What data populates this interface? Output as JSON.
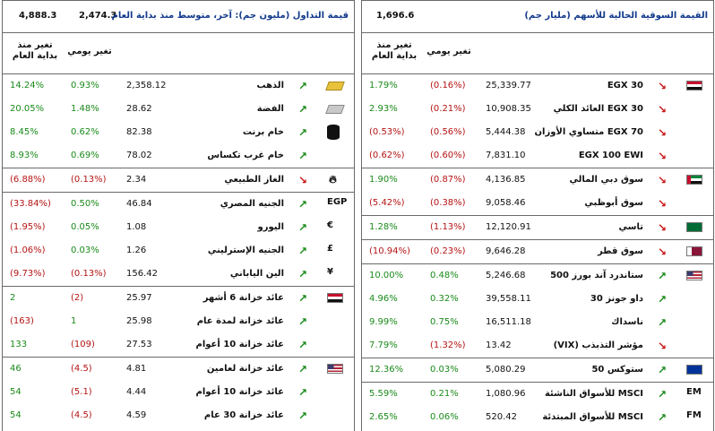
{
  "left": {
    "header": {
      "title": "قيمة التداول (مليون جم): آخر، متوسط منذ بداية العام",
      "last": "2,474.3",
      "avg": "4,888.3"
    },
    "col_headers": {
      "ytd": "تغير منذ بداية العام",
      "daily": "تغير يومي"
    },
    "rows": [
      {
        "ytd": "14.24%",
        "ytd_c": "pos",
        "d": "0.93%",
        "d_c": "pos",
        "price": "2,358.12",
        "name": "الذهب",
        "arrow": "up",
        "icon": "gold-bar",
        "sep": false
      },
      {
        "ytd": "20.05%",
        "ytd_c": "pos",
        "d": "1.48%",
        "d_c": "pos",
        "price": "28.62",
        "name": "الفضة",
        "arrow": "up",
        "icon": "silver-bar",
        "sep": false
      },
      {
        "ytd": "8.45%",
        "ytd_c": "pos",
        "d": "0.62%",
        "d_c": "pos",
        "price": "82.38",
        "name": "خام برنت",
        "arrow": "up",
        "icon": "oil-barrel",
        "sep": false
      },
      {
        "ytd": "8.93%",
        "ytd_c": "pos",
        "d": "0.69%",
        "d_c": "pos",
        "price": "78.02",
        "name": "خام غرب تكساس",
        "arrow": "up",
        "icon": "",
        "sep": false
      },
      {
        "ytd": "(6.88%)",
        "ytd_c": "neg",
        "d": "(0.13%)",
        "d_c": "neg",
        "price": "2.34",
        "name": "الغاز الطبيعي",
        "arrow": "down",
        "icon": "flame",
        "sep": true
      },
      {
        "ytd": "(33.84%)",
        "ytd_c": "neg",
        "d": "0.50%",
        "d_c": "pos",
        "price": "46.84",
        "name": "الجنيه المصري",
        "arrow": "up",
        "icon": "EGP",
        "sep": true
      },
      {
        "ytd": "(1.95%)",
        "ytd_c": "neg",
        "d": "0.05%",
        "d_c": "pos",
        "price": "1.08",
        "name": "اليورو",
        "arrow": "up",
        "icon": "€",
        "sep": false
      },
      {
        "ytd": "(1.06%)",
        "ytd_c": "neg",
        "d": "0.03%",
        "d_c": "pos",
        "price": "1.26",
        "name": "الجنيه الإسترليني",
        "arrow": "up",
        "icon": "£",
        "sep": false
      },
      {
        "ytd": "(9.73%)",
        "ytd_c": "neg",
        "d": "(0.13%)",
        "d_c": "neg",
        "price": "156.42",
        "name": "الين الياباني",
        "arrow": "up",
        "icon": "¥",
        "sep": false
      },
      {
        "ytd": "2",
        "ytd_c": "pos",
        "d": "(2)",
        "d_c": "neg",
        "price": "25.97",
        "name": "عائد خزانة 6 أشهر",
        "arrow": "up",
        "icon": "flag-egypt",
        "sep": true
      },
      {
        "ytd": "(163)",
        "ytd_c": "neg",
        "d": "1",
        "d_c": "pos",
        "price": "25.98",
        "name": "عائد خزانة لمدة عام",
        "arrow": "up",
        "icon": "",
        "sep": false
      },
      {
        "ytd": "133",
        "ytd_c": "pos",
        "d": "(109)",
        "d_c": "neg",
        "price": "27.53",
        "name": "عائد خزانة 10 أعوام",
        "arrow": "up",
        "icon": "",
        "sep": false
      },
      {
        "ytd": "46",
        "ytd_c": "pos",
        "d": "(4.5)",
        "d_c": "neg",
        "price": "4.81",
        "name": "عائد خزانة لعامين",
        "arrow": "up",
        "icon": "flag-usa",
        "sep": true
      },
      {
        "ytd": "54",
        "ytd_c": "pos",
        "d": "(5.1)",
        "d_c": "neg",
        "price": "4.44",
        "name": "عائد خزانة 10 أعوام",
        "arrow": "up",
        "icon": "",
        "sep": false
      },
      {
        "ytd": "54",
        "ytd_c": "pos",
        "d": "(4.5)",
        "d_c": "neg",
        "price": "4.59",
        "name": "عائد خزانة 30 عام",
        "arrow": "up",
        "icon": "",
        "sep": false
      }
    ]
  },
  "right": {
    "header": {
      "title": "القيمة السوقية الحالية للأسهم (مليار جم)",
      "value": "1,696.6"
    },
    "col_headers": {
      "ytd": "تغير منذ بداية العام",
      "daily": "تغير يومي"
    },
    "rows": [
      {
        "ytd": "1.79%",
        "ytd_c": "pos",
        "d": "(0.16%)",
        "d_c": "neg",
        "price": "25,339.77",
        "name": "EGX 30",
        "arrow": "down",
        "icon": "flag-egypt",
        "sep": false
      },
      {
        "ytd": "2.93%",
        "ytd_c": "pos",
        "d": "(0.21%)",
        "d_c": "neg",
        "price": "10,908.35",
        "name": "EGX 30 العائد الكلي",
        "arrow": "down",
        "icon": "",
        "sep": false
      },
      {
        "ytd": "(0.53%)",
        "ytd_c": "neg",
        "d": "(0.56%)",
        "d_c": "neg",
        "price": "5,444.38",
        "name": "EGX 70 متساوي الأوزان",
        "arrow": "down",
        "icon": "",
        "sep": false
      },
      {
        "ytd": "(0.62%)",
        "ytd_c": "neg",
        "d": "(0.60%)",
        "d_c": "neg",
        "price": "7,831.10",
        "name": "EGX 100 EWI",
        "arrow": "down",
        "icon": "",
        "sep": false
      },
      {
        "ytd": "1.90%",
        "ytd_c": "pos",
        "d": "(0.87%)",
        "d_c": "neg",
        "price": "4,136.85",
        "name": "سوق دبي المالي",
        "arrow": "down",
        "icon": "flag-uae",
        "sep": true
      },
      {
        "ytd": "(5.42%)",
        "ytd_c": "neg",
        "d": "(0.38%)",
        "d_c": "neg",
        "price": "9,058.46",
        "name": "سوق أبوظبي",
        "arrow": "down",
        "icon": "",
        "sep": false
      },
      {
        "ytd": "1.28%",
        "ytd_c": "pos",
        "d": "(1.13%)",
        "d_c": "neg",
        "price": "12,120.91",
        "name": "تاسي",
        "arrow": "down",
        "icon": "flag-saudi",
        "sep": true
      },
      {
        "ytd": "(10.94%)",
        "ytd_c": "neg",
        "d": "(0.23%)",
        "d_c": "neg",
        "price": "9,646.28",
        "name": "سوق قطر",
        "arrow": "down",
        "icon": "flag-qatar",
        "sep": true
      },
      {
        "ytd": "10.00%",
        "ytd_c": "pos",
        "d": "0.48%",
        "d_c": "pos",
        "price": "5,246.68",
        "name": "ستاندرد آند بورز 500",
        "arrow": "up",
        "icon": "flag-usa",
        "sep": true
      },
      {
        "ytd": "4.96%",
        "ytd_c": "pos",
        "d": "0.32%",
        "d_c": "pos",
        "price": "39,558.11",
        "name": "داو جونز 30",
        "arrow": "up",
        "icon": "",
        "sep": false
      },
      {
        "ytd": "9.99%",
        "ytd_c": "pos",
        "d": "0.75%",
        "d_c": "pos",
        "price": "16,511.18",
        "name": "ناسداك",
        "arrow": "up",
        "icon": "",
        "sep": false
      },
      {
        "ytd": "7.79%",
        "ytd_c": "pos",
        "d": "(1.32%)",
        "d_c": "neg",
        "price": "13.42",
        "name": "مؤشر التذبذب (VIX)",
        "arrow": "down",
        "icon": "",
        "sep": false
      },
      {
        "ytd": "12.36%",
        "ytd_c": "pos",
        "d": "0.03%",
        "d_c": "pos",
        "price": "5,080.29",
        "name": "ستوكس 50",
        "arrow": "up",
        "icon": "flag-eu",
        "sep": true
      },
      {
        "ytd": "5.59%",
        "ytd_c": "pos",
        "d": "0.21%",
        "d_c": "pos",
        "price": "1,080.96",
        "name": "MSCI للأسواق الناشئة",
        "arrow": "up",
        "icon": "EM",
        "sep": true
      },
      {
        "ytd": "2.65%",
        "ytd_c": "pos",
        "d": "0.06%",
        "d_c": "pos",
        "price": "520.42",
        "name": "MSCI للأسواق المبتدئة",
        "arrow": "up",
        "icon": "FM",
        "sep": false
      }
    ]
  }
}
